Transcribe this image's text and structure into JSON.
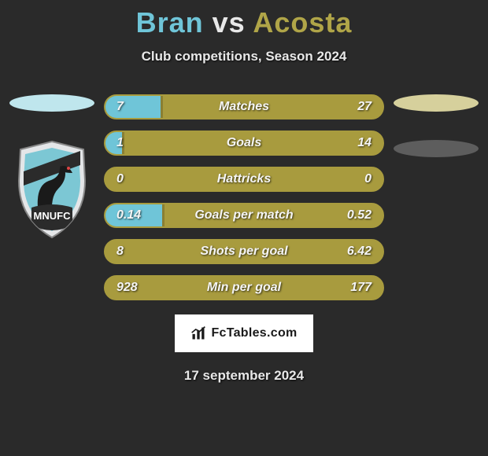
{
  "title": {
    "player1": "Bran",
    "vs": "vs",
    "player2": "Acosta",
    "player1_color": "#6fc5d8",
    "vs_color": "#e8e8e8",
    "player2_color": "#b0a548"
  },
  "subtitle": "Club competitions, Season 2024",
  "left_side": {
    "avatar_color": "#bfe6ed",
    "crest": {
      "shield_bg": "#e4e6e8",
      "shield_inner": "#7cc7d4",
      "stripe": "#2b2b2b",
      "bird": "#1a1a1a",
      "text": "MNUFC",
      "text_color": "#ffffff"
    }
  },
  "right_side": {
    "avatar1_color": "#d6d09c",
    "avatar2_color": "#5d5d5d"
  },
  "bars": {
    "border_color": "#a89b3e",
    "left_fill_color": "#6fc5d8",
    "right_fill_color": "#a89b3e",
    "divider_shade": "#8a7f33",
    "rows": [
      {
        "label": "Matches",
        "left_val": "7",
        "right_val": "27",
        "left_pct": 20.6,
        "right_pct": 79.4
      },
      {
        "label": "Goals",
        "left_val": "1",
        "right_val": "14",
        "left_pct": 6.7,
        "right_pct": 93.3
      },
      {
        "label": "Hattricks",
        "left_val": "0",
        "right_val": "0",
        "left_pct": 0,
        "right_pct": 100
      },
      {
        "label": "Goals per match",
        "left_val": "0.14",
        "right_val": "0.52",
        "left_pct": 21.2,
        "right_pct": 78.8
      },
      {
        "label": "Shots per goal",
        "left_val": "8",
        "right_val": "6.42",
        "left_pct": 0,
        "right_pct": 100
      },
      {
        "label": "Min per goal",
        "left_val": "928",
        "right_val": "177",
        "left_pct": 0,
        "right_pct": 100
      }
    ]
  },
  "brand": {
    "text": "FcTables.com"
  },
  "date": "17 september 2024",
  "background_color": "#2a2a2a"
}
